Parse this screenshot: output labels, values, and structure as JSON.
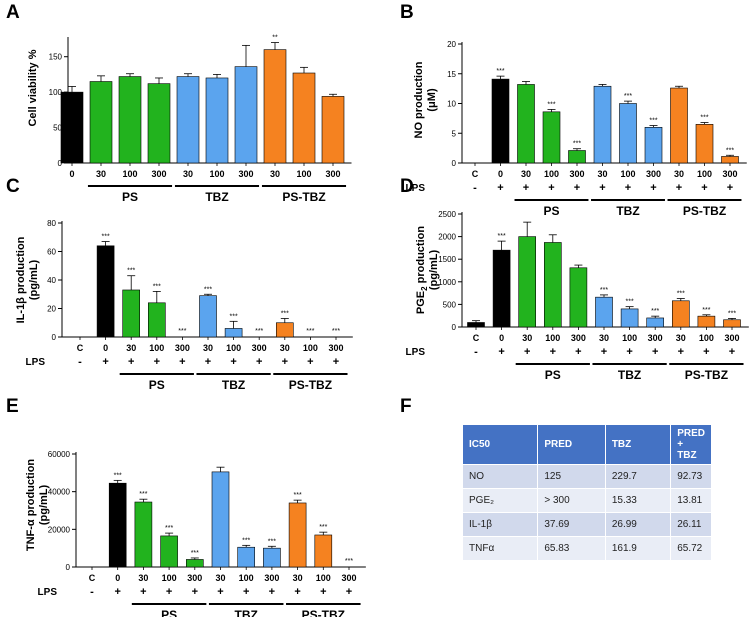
{
  "panel_labels": [
    "A",
    "B",
    "C",
    "D",
    "E",
    "F"
  ],
  "lps_label": "LPS",
  "colors": {
    "control": "#000000",
    "PS": "#22b31e",
    "TBZ": "#5ba4ee",
    "PS-TBZ": "#f58220"
  },
  "chart_data": [
    {
      "id": "A",
      "type": "bar",
      "ylabel": "Cell viability %",
      "ylim": [
        0,
        175
      ],
      "yticks": [
        0,
        50,
        100,
        150
      ],
      "categories": [
        "0",
        "30",
        "100",
        "300",
        "30",
        "100",
        "300",
        "30",
        "100",
        "300"
      ],
      "groups": [
        "control",
        "PS",
        "PS",
        "PS",
        "TBZ",
        "TBZ",
        "TBZ",
        "PS-TBZ",
        "PS-TBZ",
        "PS-TBZ"
      ],
      "values": [
        100,
        115,
        122,
        112,
        122,
        120,
        136,
        160,
        127,
        94
      ],
      "errors": [
        8,
        8,
        4,
        8,
        4,
        5,
        30,
        10,
        8,
        3
      ],
      "significance": [
        "",
        "",
        "",
        "",
        "",
        "",
        "",
        "**",
        "",
        ""
      ],
      "group_labels": [
        {
          "label": "PS",
          "from": 1,
          "to": 3
        },
        {
          "label": "TBZ",
          "from": 4,
          "to": 6
        },
        {
          "label": "PS-TBZ",
          "from": 7,
          "to": 9
        }
      ],
      "lps_row": null
    },
    {
      "id": "B",
      "type": "bar",
      "ylabel": "NO production (μM)",
      "ylim": [
        0,
        20
      ],
      "yticks": [
        0,
        5,
        10,
        15,
        20
      ],
      "categories": [
        "C",
        "0",
        "30",
        "100",
        "300",
        "30",
        "100",
        "300",
        "30",
        "100",
        "300"
      ],
      "groups": [
        "control",
        "control",
        "PS",
        "PS",
        "PS",
        "TBZ",
        "TBZ",
        "TBZ",
        "PS-TBZ",
        "PS-TBZ",
        "PS-TBZ"
      ],
      "values": [
        0,
        14.1,
        13.2,
        8.6,
        2.1,
        12.9,
        10,
        6,
        12.6,
        6.5,
        1.1
      ],
      "errors": [
        0,
        0.5,
        0.5,
        0.4,
        0.3,
        0.3,
        0.4,
        0.3,
        0.3,
        0.3,
        0.2
      ],
      "significance": [
        "",
        "***",
        "",
        "***",
        "***",
        "",
        "***",
        "***",
        "",
        "***",
        "***"
      ],
      "group_labels": [
        {
          "label": "PS",
          "from": 2,
          "to": 4
        },
        {
          "label": "TBZ",
          "from": 5,
          "to": 7
        },
        {
          "label": "PS-TBZ",
          "from": 8,
          "to": 10
        }
      ],
      "lps_row": [
        "-",
        "+",
        "+",
        "+",
        "+",
        "+",
        "+",
        "+",
        "+",
        "+",
        "+"
      ]
    },
    {
      "id": "C",
      "type": "bar",
      "ylabel": "IL-1β production (pg/mL)",
      "ylim": [
        0,
        80
      ],
      "yticks": [
        0,
        20,
        40,
        60,
        80
      ],
      "categories": [
        "C",
        "0",
        "30",
        "100",
        "300",
        "30",
        "100",
        "300",
        "30",
        "100",
        "300"
      ],
      "groups": [
        "control",
        "control",
        "PS",
        "PS",
        "PS",
        "TBZ",
        "TBZ",
        "TBZ",
        "PS-TBZ",
        "PS-TBZ",
        "PS-TBZ"
      ],
      "values": [
        0,
        64,
        33,
        24,
        0,
        29,
        6,
        0,
        10,
        0,
        0
      ],
      "errors": [
        0,
        3,
        10,
        8,
        0,
        1,
        5,
        0,
        3,
        0,
        0
      ],
      "significance": [
        "",
        "***",
        "***",
        "***",
        "***",
        "***",
        "***",
        "***",
        "***",
        "***",
        "***"
      ],
      "group_labels": [
        {
          "label": "PS",
          "from": 2,
          "to": 4
        },
        {
          "label": "TBZ",
          "from": 5,
          "to": 7
        },
        {
          "label": "PS-TBZ",
          "from": 8,
          "to": 10
        }
      ],
      "lps_row": [
        "-",
        "+",
        "+",
        "+",
        "+",
        "+",
        "+",
        "+",
        "+",
        "+",
        "+"
      ]
    },
    {
      "id": "D",
      "type": "bar",
      "ylabel": "PGE2 production (pg/mL)",
      "ylim": [
        0,
        2500
      ],
      "yticks": [
        0,
        500,
        1000,
        1500,
        2000,
        2500
      ],
      "categories": [
        "C",
        "0",
        "30",
        "100",
        "300",
        "30",
        "100",
        "300",
        "30",
        "100",
        "300"
      ],
      "groups": [
        "control",
        "control",
        "PS",
        "PS",
        "PS",
        "TBZ",
        "TBZ",
        "TBZ",
        "PS-TBZ",
        "PS-TBZ",
        "PS-TBZ"
      ],
      "values": [
        100,
        1700,
        2000,
        1870,
        1310,
        660,
        400,
        200,
        580,
        240,
        160
      ],
      "errors": [
        40,
        200,
        320,
        170,
        60,
        50,
        50,
        40,
        50,
        30,
        30
      ],
      "significance": [
        "",
        "***",
        "",
        "",
        "",
        "***",
        "***",
        "***",
        "***",
        "***",
        "***"
      ],
      "group_labels": [
        {
          "label": "PS",
          "from": 2,
          "to": 4
        },
        {
          "label": "TBZ",
          "from": 5,
          "to": 7
        },
        {
          "label": "PS-TBZ",
          "from": 8,
          "to": 10
        }
      ],
      "lps_row": [
        "-",
        "+",
        "+",
        "+",
        "+",
        "+",
        "+",
        "+",
        "+",
        "+",
        "+"
      ]
    },
    {
      "id": "E",
      "type": "bar",
      "ylabel": "TNF-α production (pg/mL)",
      "ylim": [
        0,
        60000
      ],
      "yticks": [
        0,
        20000,
        40000,
        60000
      ],
      "categories": [
        "C",
        "0",
        "30",
        "100",
        "300",
        "30",
        "100",
        "300",
        "30",
        "100",
        "300"
      ],
      "groups": [
        "control",
        "control",
        "PS",
        "PS",
        "PS",
        "TBZ",
        "TBZ",
        "TBZ",
        "PS-TBZ",
        "PS-TBZ",
        "PS-TBZ"
      ],
      "values": [
        0,
        44500,
        34500,
        16500,
        4000,
        50500,
        10500,
        10000,
        34000,
        17000,
        0
      ],
      "errors": [
        0,
        1500,
        1500,
        1500,
        800,
        2500,
        1000,
        1000,
        1500,
        1500,
        0
      ],
      "significance": [
        "",
        "***",
        "***",
        "***",
        "***",
        "",
        "***",
        "***",
        "***",
        "***",
        "***"
      ],
      "group_labels": [
        {
          "label": "PS",
          "from": 2,
          "to": 4
        },
        {
          "label": "TBZ",
          "from": 5,
          "to": 7
        },
        {
          "label": "PS-TBZ",
          "from": 8,
          "to": 10
        }
      ],
      "lps_row": [
        "-",
        "+",
        "+",
        "+",
        "+",
        "+",
        "+",
        "+",
        "+",
        "+",
        "+"
      ]
    }
  ],
  "ic50_table": {
    "headers": [
      "IC50",
      "PRED",
      "TBZ",
      "PRED + TBZ"
    ],
    "rows": [
      [
        "NO",
        "125",
        "229.7",
        "92.73"
      ],
      [
        "PGE₂",
        "> 300",
        "15.33",
        "13.81"
      ],
      [
        "IL-1β",
        "37.69",
        "26.99",
        "26.11"
      ],
      [
        "TNFα",
        "65.83",
        "161.9",
        "65.72"
      ]
    ]
  }
}
